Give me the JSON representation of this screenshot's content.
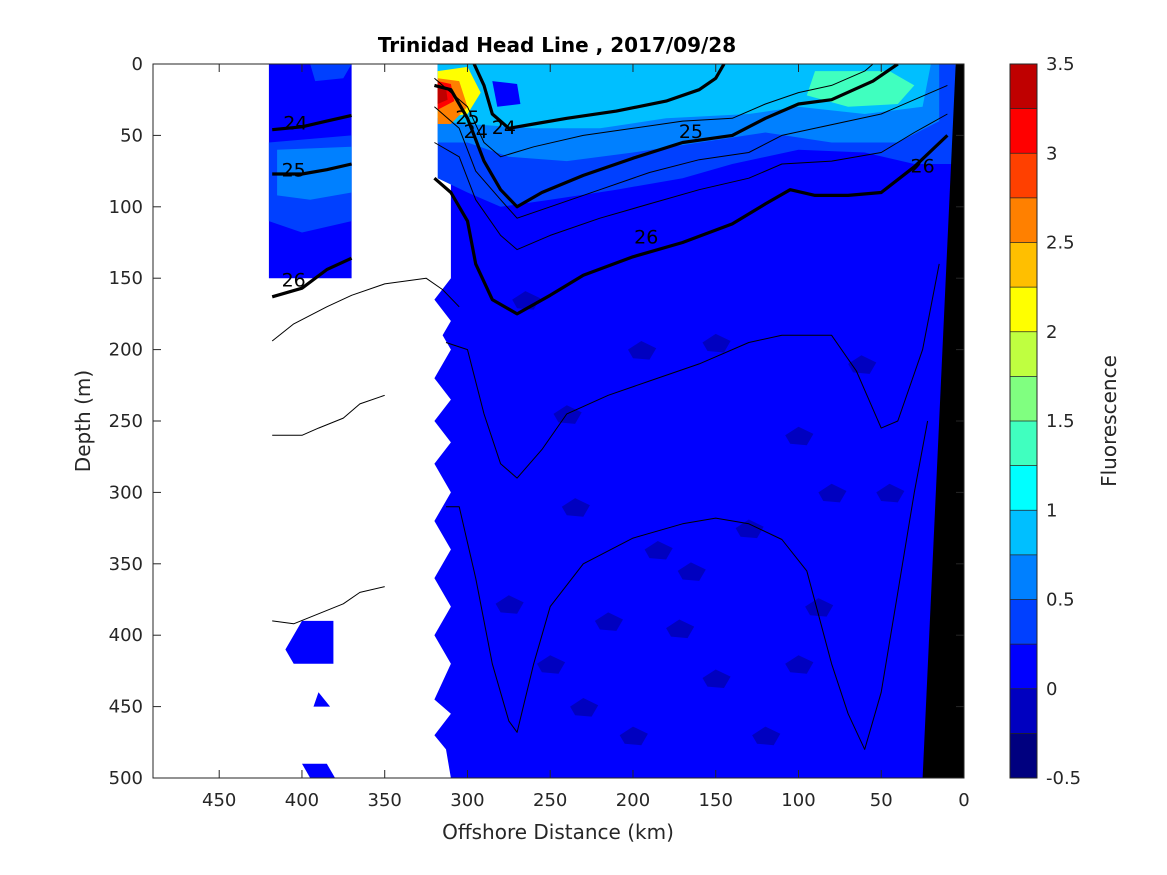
{
  "chart_data": {
    "type": "heatmap",
    "title": "Trinidad Head Line , 2017/09/28",
    "xlabel": "Offshore Distance (km)",
    "ylabel": "Depth (m)",
    "xlim": [
      490,
      0
    ],
    "ylim": [
      0,
      500
    ],
    "x_reversed": true,
    "y_reversed": true,
    "x_ticks": [
      "450",
      "400",
      "350",
      "300",
      "250",
      "200",
      "150",
      "100",
      "50",
      "0"
    ],
    "x_tick_values": [
      450,
      400,
      350,
      300,
      250,
      200,
      150,
      100,
      50,
      0
    ],
    "y_ticks": [
      "0",
      "50",
      "100",
      "150",
      "200",
      "250",
      "300",
      "350",
      "400",
      "450",
      "500"
    ],
    "y_tick_values": [
      0,
      50,
      100,
      150,
      200,
      250,
      300,
      350,
      400,
      450,
      500
    ],
    "colorbar": {
      "label": "Fluorescence",
      "range": [
        -0.5,
        3.5
      ],
      "tick_labels": [
        "3.5",
        "3",
        "2.5",
        "2",
        "1.5",
        "1",
        "0.5",
        "0",
        "-0.5"
      ],
      "tick_values": [
        3.5,
        3,
        2.5,
        2,
        1.5,
        1,
        0.5,
        0,
        -0.5
      ],
      "levels": [
        -0.5,
        -0.25,
        0,
        0.25,
        0.5,
        0.75,
        1,
        1.25,
        1.5,
        1.75,
        2,
        2.25,
        2.5,
        2.75,
        3,
        3.25,
        3.5
      ],
      "colors": [
        "#00007f",
        "#0000c0",
        "#0000ff",
        "#0040ff",
        "#0080ff",
        "#00bfff",
        "#00ffff",
        "#40ffbf",
        "#80ff80",
        "#bfff40",
        "#ffff00",
        "#ffbf00",
        "#ff8000",
        "#ff4000",
        "#ff0000",
        "#bf0000"
      ]
    },
    "field_description": "Fluorescence mostly 0 to 0.25 below 150 m; surface maximum up to ~3.5 near 310 km at ~25 m depth; 0.5-1.25 band along upper 60 m from 300 km to 10 km",
    "isopycnal_labels": [
      {
        "text": "24",
        "x": 404,
        "y": 42
      },
      {
        "text": "25",
        "x": 405,
        "y": 75
      },
      {
        "text": "26",
        "x": 405,
        "y": 152
      },
      {
        "text": "24",
        "x": 295,
        "y": 48
      },
      {
        "text": "25",
        "x": 300,
        "y": 38
      },
      {
        "text": "24",
        "x": 278,
        "y": 45
      },
      {
        "text": "25",
        "x": 165,
        "y": 48
      },
      {
        "text": "26",
        "x": 192,
        "y": 122
      },
      {
        "text": "26",
        "x": 25,
        "y": 72
      }
    ],
    "isopycnals": [
      {
        "level": "24",
        "bold": true,
        "points": [
          [
            418,
            46
          ],
          [
            400,
            44
          ],
          [
            385,
            40
          ],
          [
            370,
            36
          ]
        ]
      },
      {
        "level": "25",
        "bold": true,
        "points": [
          [
            418,
            77
          ],
          [
            400,
            77
          ],
          [
            385,
            74
          ],
          [
            370,
            70
          ]
        ]
      },
      {
        "level": "26",
        "bold": true,
        "points": [
          [
            418,
            163
          ],
          [
            400,
            157
          ],
          [
            385,
            144
          ],
          [
            370,
            136
          ]
        ]
      },
      {
        "level": "24",
        "bold": true,
        "points": [
          [
            296,
            0
          ],
          [
            290,
            15
          ],
          [
            285,
            35
          ],
          [
            275,
            45
          ],
          [
            260,
            42
          ],
          [
            240,
            38
          ],
          [
            210,
            33
          ],
          [
            180,
            26
          ],
          [
            160,
            18
          ],
          [
            150,
            10
          ],
          [
            145,
            0
          ]
        ]
      },
      {
        "level": "25",
        "bold": true,
        "points": [
          [
            320,
            15
          ],
          [
            310,
            18
          ],
          [
            300,
            38
          ],
          [
            290,
            68
          ],
          [
            280,
            88
          ],
          [
            270,
            100
          ],
          [
            255,
            90
          ],
          [
            230,
            78
          ],
          [
            200,
            66
          ],
          [
            170,
            55
          ],
          [
            140,
            50
          ],
          [
            120,
            38
          ],
          [
            100,
            28
          ],
          [
            80,
            25
          ],
          [
            55,
            12
          ],
          [
            40,
            0
          ]
        ]
      },
      {
        "level": "26",
        "bold": true,
        "points": [
          [
            320,
            80
          ],
          [
            310,
            90
          ],
          [
            300,
            110
          ],
          [
            295,
            140
          ],
          [
            285,
            165
          ],
          [
            270,
            175
          ],
          [
            250,
            162
          ],
          [
            230,
            148
          ],
          [
            200,
            135
          ],
          [
            170,
            125
          ],
          [
            140,
            112
          ],
          [
            120,
            98
          ],
          [
            105,
            88
          ],
          [
            90,
            92
          ],
          [
            70,
            92
          ],
          [
            50,
            90
          ],
          [
            30,
            72
          ],
          [
            10,
            50
          ]
        ]
      },
      {
        "level": "",
        "bold": false,
        "points": [
          [
            320,
            10
          ],
          [
            300,
            30
          ],
          [
            290,
            55
          ],
          [
            280,
            65
          ],
          [
            260,
            58
          ],
          [
            230,
            50
          ],
          [
            200,
            45
          ],
          [
            170,
            40
          ],
          [
            140,
            38
          ],
          [
            120,
            28
          ],
          [
            100,
            20
          ],
          [
            80,
            15
          ],
          [
            60,
            5
          ],
          [
            55,
            0
          ]
        ]
      },
      {
        "level": "",
        "bold": false,
        "points": [
          [
            320,
            30
          ],
          [
            305,
            45
          ],
          [
            295,
            75
          ],
          [
            280,
            95
          ],
          [
            270,
            108
          ],
          [
            250,
            100
          ],
          [
            220,
            88
          ],
          [
            190,
            76
          ],
          [
            160,
            67
          ],
          [
            130,
            62
          ],
          [
            110,
            50
          ],
          [
            90,
            45
          ],
          [
            70,
            40
          ],
          [
            50,
            35
          ],
          [
            30,
            25
          ],
          [
            10,
            15
          ]
        ]
      },
      {
        "level": "",
        "bold": false,
        "points": [
          [
            320,
            55
          ],
          [
            305,
            65
          ],
          [
            295,
            95
          ],
          [
            280,
            120
          ],
          [
            270,
            130
          ],
          [
            250,
            120
          ],
          [
            220,
            108
          ],
          [
            190,
            98
          ],
          [
            160,
            88
          ],
          [
            130,
            80
          ],
          [
            110,
            70
          ],
          [
            80,
            68
          ],
          [
            50,
            62
          ],
          [
            30,
            48
          ],
          [
            10,
            35
          ]
        ]
      },
      {
        "level": "",
        "bold": false,
        "points": [
          [
            313,
            195
          ],
          [
            300,
            200
          ],
          [
            290,
            245
          ],
          [
            280,
            280
          ],
          [
            270,
            290
          ],
          [
            255,
            270
          ],
          [
            240,
            245
          ],
          [
            215,
            232
          ],
          [
            190,
            222
          ],
          [
            160,
            210
          ],
          [
            130,
            195
          ],
          [
            110,
            190
          ],
          [
            80,
            190
          ],
          [
            65,
            215
          ],
          [
            50,
            255
          ],
          [
            40,
            250
          ],
          [
            25,
            200
          ],
          [
            15,
            140
          ]
        ]
      },
      {
        "level": "",
        "bold": false,
        "points": [
          [
            313,
            310
          ],
          [
            305,
            310
          ],
          [
            295,
            360
          ],
          [
            285,
            420
          ],
          [
            275,
            460
          ],
          [
            270,
            468
          ],
          [
            260,
            420
          ],
          [
            250,
            380
          ],
          [
            230,
            350
          ],
          [
            200,
            332
          ],
          [
            170,
            322
          ],
          [
            150,
            318
          ],
          [
            130,
            322
          ],
          [
            110,
            333
          ],
          [
            95,
            355
          ],
          [
            80,
            420
          ],
          [
            70,
            455
          ],
          [
            60,
            480
          ],
          [
            50,
            440
          ],
          [
            40,
            370
          ],
          [
            30,
            300
          ],
          [
            22,
            250
          ]
        ]
      },
      {
        "level": "",
        "bold": false,
        "points": [
          [
            418,
            194
          ],
          [
            405,
            182
          ],
          [
            385,
            170
          ],
          [
            370,
            162
          ],
          [
            350,
            154
          ],
          [
            325,
            150
          ],
          [
            315,
            158
          ],
          [
            305,
            170
          ]
        ]
      },
      {
        "level": "",
        "bold": false,
        "points": [
          [
            418,
            260
          ],
          [
            400,
            260
          ],
          [
            390,
            255
          ],
          [
            375,
            248
          ],
          [
            365,
            238
          ],
          [
            350,
            232
          ]
        ]
      },
      {
        "level": "",
        "bold": false,
        "points": [
          [
            418,
            390
          ],
          [
            405,
            392
          ],
          [
            390,
            385
          ],
          [
            375,
            378
          ],
          [
            365,
            370
          ],
          [
            350,
            366
          ]
        ]
      }
    ]
  }
}
